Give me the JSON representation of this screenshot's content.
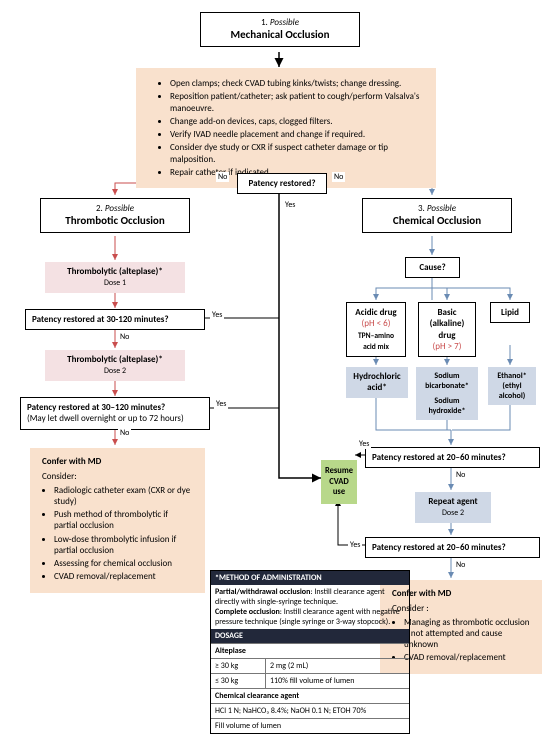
{
  "root": {
    "num": "1.",
    "sup": "Possible",
    "main": "Mechanical Occlusion"
  },
  "mech": [
    "Open clamps; check CVAD tubing kinks/twists; change dressing.",
    "Reposition patient/catheter; ask patient to cough/perform Valsalva's manoeuvre.",
    "Change add-on devices, caps, clogged filters.",
    "Verify IVAD needle placement and change if required.",
    "Consider dye study or CXR if suspect catheter damage or tip malposition.",
    "Repair catheter if indicated."
  ],
  "patency": "Patency restored?",
  "left": {
    "num": "2.",
    "sup": "Possible",
    "main": "Thrombotic Occlusion",
    "d1a": "Thrombolytic (alteplase)*",
    "d1b": "Dose 1",
    "q1": "Patency restored at 30-120 minutes?",
    "d2a": "Thrombolytic (alteplase)*",
    "d2b": "Dose 2",
    "q2a": "Patency restored at 30–120 minutes?",
    "q2b": "(May let dwell overnight or up to 72 hours)",
    "conferHdr": "Confer with MD",
    "conferSub": "Consider:",
    "confer": [
      "Radiologic catheter exam (CXR or dye study)",
      "Push method of thrombolytic if partial occlusion",
      "Low-dose thrombolytic infusion if partial occlusion",
      "Assessing for chemical occlusion",
      "CVAD removal/replacement"
    ]
  },
  "right": {
    "num": "3.",
    "sup": "Possible",
    "main": "Chemical Occlusion",
    "cause": "Cause?",
    "acidA": "Acidic drug",
    "acidB": "(pH < 6)",
    "acidC": "TPN–amino acid mix",
    "baseA": "Basic",
    "baseB": "(alkaline)",
    "baseC": "drug",
    "baseD": "(pH > 7)",
    "lipid": "Lipid",
    "hcl": "Hydrochloric acid*",
    "bicarb": "Sodium bicarbonate*",
    "naoh": "Sodium hydroxide*",
    "etoh": "Ethanol* (ethyl alcohol)",
    "q1": "Patency restored at 20–60 minutes?",
    "rpt1": "Repeat agent",
    "rpt2": "Dose 2",
    "q2": "Patency restored at 20–60 minutes?",
    "conferHdr": "Confer with MD",
    "conferSub": "Consider :",
    "confer": [
      "Managing as thrombotic occlusion if not attempted and cause unknown",
      "CVAD removal/replacement"
    ]
  },
  "resume": "Resume CVAD use",
  "method": {
    "title": "*METHOD OF ADMINISTRATION",
    "p1a": "Partial/withdrawal occlusion",
    "p1b": ": Instill clearance agent directly with single-syringe technique.",
    "p2a": "Complete occlusion",
    "p2b": ": Instill clearance agent with negative pressure technique (single syringe or 3-way stopcock).",
    "dosage": "DOSAGE",
    "alteplase": "Alteplase",
    "r1a": "≥ 30 kg",
    "r1b": "2 mg (2 mL)",
    "r2a": "≤ 30 kg",
    "r2b": "110% fill volume of lumen",
    "clr": "Chemical clearance agent",
    "clr1": "HCl 1 N; NaHCO₃ 8.4%; NaOH 0.1 N; ETOH 70%",
    "clr2": "Fill volume of lumen"
  },
  "labels": {
    "yes": "Yes",
    "no": "No"
  }
}
